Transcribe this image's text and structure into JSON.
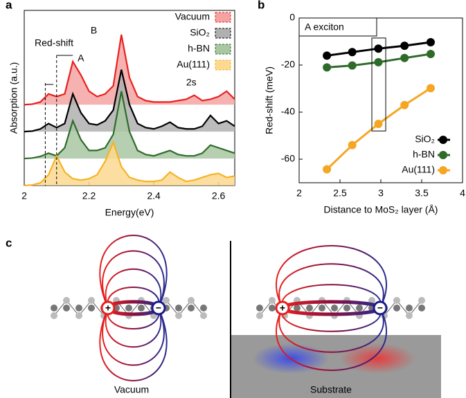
{
  "chart_data": [
    {
      "type": "line",
      "panel_label": "a",
      "xlabel": "Energy(eV)",
      "ylabel": "Absorption (a.u.)",
      "xlim": [
        2,
        2.65
      ],
      "xticks": [
        2,
        2.2,
        2.4,
        2.6
      ],
      "ylim": [
        0,
        6.5
      ],
      "area": true,
      "legend": "top-right",
      "annotations": [
        "Red-shift",
        "A",
        "B",
        "2s"
      ],
      "x": [
        2.0,
        2.025,
        2.05,
        2.075,
        2.1,
        2.125,
        2.15,
        2.175,
        2.2,
        2.225,
        2.25,
        2.275,
        2.3,
        2.325,
        2.35,
        2.375,
        2.4,
        2.425,
        2.45,
        2.475,
        2.5,
        2.525,
        2.55,
        2.575,
        2.6,
        2.625,
        2.65
      ],
      "series": [
        {
          "name": "Vacuum",
          "color": "#e8201e",
          "fill": "#f4a3a3",
          "values": [
            3.0,
            3.02,
            3.1,
            3.4,
            3.3,
            3.4,
            4.6,
            4.1,
            3.5,
            3.3,
            3.4,
            3.7,
            5.6,
            4.0,
            3.3,
            3.15,
            3.1,
            3.1,
            3.1,
            3.15,
            3.2,
            3.35,
            3.15,
            3.2,
            3.3,
            3.5,
            3.2
          ]
        },
        {
          "name": "SiO₂",
          "color": "#000000",
          "fill": "#b0b0b0",
          "values": [
            2.0,
            2.02,
            2.1,
            2.3,
            2.15,
            2.3,
            3.4,
            2.7,
            2.3,
            2.25,
            2.4,
            2.8,
            4.3,
            3.0,
            2.3,
            2.15,
            2.1,
            2.2,
            2.35,
            2.15,
            2.1,
            2.1,
            2.2,
            2.6,
            2.3,
            2.4,
            2.2
          ]
        },
        {
          "name": "h-BN",
          "color": "#2e6b2a",
          "fill": "#a9c7a3",
          "values": [
            1.0,
            1.02,
            1.08,
            1.2,
            1.1,
            1.4,
            2.4,
            1.7,
            1.3,
            1.3,
            1.4,
            1.9,
            3.5,
            2.0,
            1.3,
            1.15,
            1.1,
            1.2,
            1.3,
            1.15,
            1.1,
            1.1,
            1.2,
            1.5,
            1.4,
            1.3,
            1.2
          ]
        },
        {
          "name": "Au(111)",
          "color": "#f5b325",
          "fill": "#fbd98f",
          "values": [
            0.0,
            0.02,
            0.1,
            0.4,
            1.1,
            0.5,
            0.25,
            0.2,
            0.25,
            0.4,
            0.9,
            1.6,
            0.7,
            0.3,
            0.2,
            0.15,
            0.15,
            0.2,
            0.5,
            0.3,
            0.15,
            0.2,
            0.3,
            0.4,
            0.45,
            0.3,
            0.35
          ]
        }
      ]
    },
    {
      "type": "line",
      "panel_label": "b",
      "xlabel": "Distance to MoS₂ layer (Å)",
      "ylabel": "Red-shift (meV)",
      "xlim": [
        2,
        4
      ],
      "xticks": [
        2,
        2.5,
        3,
        3.5,
        4
      ],
      "ylim": [
        -70,
        0
      ],
      "yticks": [
        -60,
        -40,
        -20,
        0
      ],
      "legend": "bottom-right",
      "annotations": [
        "A exciton"
      ],
      "x": [
        2.34,
        2.65,
        2.97,
        3.29,
        3.61
      ],
      "series": [
        {
          "name": "SiO₂",
          "color": "#000000",
          "values": [
            -16,
            -14.5,
            -13,
            -11.8,
            -10.3
          ]
        },
        {
          "name": "h-BN",
          "color": "#2e6b2a",
          "values": [
            -21,
            -20.2,
            -18.8,
            -17,
            -15.3
          ]
        },
        {
          "name": "Au(111)",
          "color": "#f5a623",
          "values": [
            -64.3,
            -54,
            -45,
            -37,
            -29.8
          ]
        }
      ]
    }
  ],
  "diagram": {
    "panel_label": "c",
    "left_label": "Vacuum",
    "right_label": "Substrate",
    "plus": "+",
    "minus": "−"
  }
}
